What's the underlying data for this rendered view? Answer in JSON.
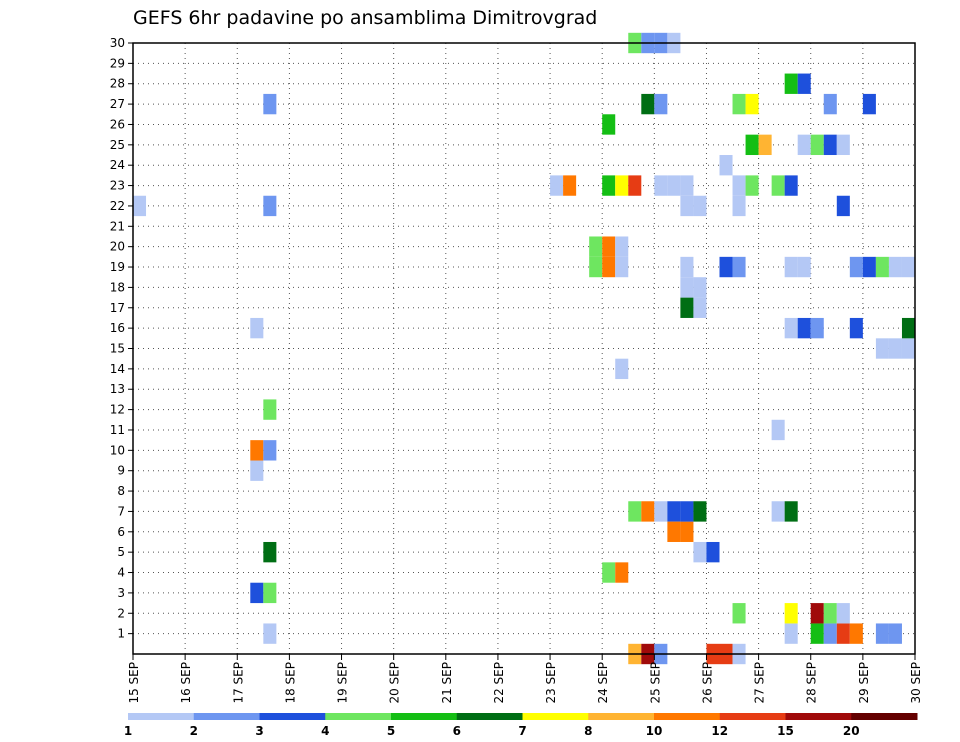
{
  "chart_data": {
    "type": "heatmap",
    "title": "GEFS 6hr padavine po ansamblima Dimitrovgrad",
    "xlabel": "",
    "ylabel": "",
    "x_ticks": [
      "15 SEP",
      "16 SEP",
      "17 SEP",
      "18 SEP",
      "19 SEP",
      "20 SEP",
      "21 SEP",
      "22 SEP",
      "23 SEP",
      "24 SEP",
      "25 SEP",
      "26 SEP",
      "27 SEP",
      "28 SEP",
      "29 SEP",
      "30 SEP"
    ],
    "y_ticks": [
      1,
      2,
      3,
      4,
      5,
      6,
      7,
      8,
      9,
      10,
      11,
      12,
      13,
      14,
      15,
      16,
      17,
      18,
      19,
      20,
      21,
      22,
      23,
      24,
      25,
      26,
      27,
      28,
      29,
      30
    ],
    "xlim": [
      0,
      60
    ],
    "ylim": [
      0,
      30
    ],
    "grid": true,
    "colorbar": {
      "labels": [
        "1",
        "2",
        "3",
        "4",
        "5",
        "6",
        "7",
        "8",
        "10",
        "12",
        "15",
        "20"
      ],
      "colors": [
        "#b4c8f5",
        "#6e96f0",
        "#1e50dc",
        "#6ee660",
        "#14be14",
        "#006e14",
        "#ffff00",
        "#ffb432",
        "#ff7800",
        "#e63c14",
        "#a00a0a",
        "#640000"
      ]
    },
    "cells": [
      {
        "t": 0.5,
        "m": 22,
        "c": 0
      },
      {
        "t": 9.5,
        "m": 3,
        "c": 2
      },
      {
        "t": 9.5,
        "m": 9,
        "c": 0
      },
      {
        "t": 9.5,
        "m": 10,
        "c": 8
      },
      {
        "t": 9.5,
        "m": 16,
        "c": 0
      },
      {
        "t": 10.5,
        "m": 1,
        "c": 0
      },
      {
        "t": 10.5,
        "m": 3,
        "c": 3
      },
      {
        "t": 10.5,
        "m": 5,
        "c": 5
      },
      {
        "t": 10.5,
        "m": 10,
        "c": 1
      },
      {
        "t": 10.5,
        "m": 12,
        "c": 3
      },
      {
        "t": 10.5,
        "m": 22,
        "c": 1
      },
      {
        "t": 10.5,
        "m": 27,
        "c": 1
      },
      {
        "t": 32.5,
        "m": 23,
        "c": 0
      },
      {
        "t": 33.5,
        "m": 23,
        "c": 8
      },
      {
        "t": 35.5,
        "m": 19,
        "c": 3
      },
      {
        "t": 35.5,
        "m": 20,
        "c": 3
      },
      {
        "t": 36.5,
        "m": 4,
        "c": 3
      },
      {
        "t": 36.5,
        "m": 19,
        "c": 8
      },
      {
        "t": 36.5,
        "m": 20,
        "c": 8
      },
      {
        "t": 36.5,
        "m": 23,
        "c": 4
      },
      {
        "t": 36.5,
        "m": 26,
        "c": 4
      },
      {
        "t": 37.5,
        "m": 4,
        "c": 8
      },
      {
        "t": 37.5,
        "m": 19,
        "c": 0
      },
      {
        "t": 37.5,
        "m": 20,
        "c": 0
      },
      {
        "t": 37.5,
        "m": 14,
        "c": 0
      },
      {
        "t": 37.5,
        "m": 23,
        "c": 6
      },
      {
        "t": 38.5,
        "m": 0,
        "c": 7
      },
      {
        "t": 38.5,
        "m": 7,
        "c": 3
      },
      {
        "t": 38.5,
        "m": 23,
        "c": 9
      },
      {
        "t": 38.5,
        "m": 30,
        "c": 3
      },
      {
        "t": 39.5,
        "m": 0,
        "c": 10
      },
      {
        "t": 39.5,
        "m": 7,
        "c": 8
      },
      {
        "t": 39.5,
        "m": 27,
        "c": 5
      },
      {
        "t": 39.5,
        "m": 30,
        "c": 1
      },
      {
        "t": 40.5,
        "m": 0,
        "c": 1
      },
      {
        "t": 40.5,
        "m": 7,
        "c": 0
      },
      {
        "t": 40.5,
        "m": 23,
        "c": 0
      },
      {
        "t": 40.5,
        "m": 27,
        "c": 1
      },
      {
        "t": 40.5,
        "m": 30,
        "c": 1
      },
      {
        "t": 41.5,
        "m": 7,
        "c": 2
      },
      {
        "t": 41.5,
        "m": 6,
        "c": 8
      },
      {
        "t": 41.5,
        "m": 23,
        "c": 0
      },
      {
        "t": 41.5,
        "m": 30,
        "c": 0
      },
      {
        "t": 42.5,
        "m": 6,
        "c": 8
      },
      {
        "t": 42.5,
        "m": 7,
        "c": 2
      },
      {
        "t": 42.5,
        "m": 17,
        "c": 5
      },
      {
        "t": 42.5,
        "m": 18,
        "c": 0
      },
      {
        "t": 42.5,
        "m": 19,
        "c": 0
      },
      {
        "t": 42.5,
        "m": 22,
        "c": 0
      },
      {
        "t": 42.5,
        "m": 23,
        "c": 0
      },
      {
        "t": 43.5,
        "m": 5,
        "c": 0
      },
      {
        "t": 43.5,
        "m": 7,
        "c": 5
      },
      {
        "t": 43.5,
        "m": 18,
        "c": 0
      },
      {
        "t": 43.5,
        "m": 17,
        "c": 0
      },
      {
        "t": 43.5,
        "m": 22,
        "c": 0
      },
      {
        "t": 44.5,
        "m": 0,
        "c": 9
      },
      {
        "t": 44.5,
        "m": 5,
        "c": 2
      },
      {
        "t": 45.5,
        "m": 0,
        "c": 9
      },
      {
        "t": 45.5,
        "m": 19,
        "c": 2
      },
      {
        "t": 45.5,
        "m": 24,
        "c": 0
      },
      {
        "t": 46.5,
        "m": 0,
        "c": 0
      },
      {
        "t": 46.5,
        "m": 2,
        "c": 3
      },
      {
        "t": 46.5,
        "m": 19,
        "c": 1
      },
      {
        "t": 46.5,
        "m": 22,
        "c": 0
      },
      {
        "t": 46.5,
        "m": 23,
        "c": 0
      },
      {
        "t": 46.5,
        "m": 27,
        "c": 3
      },
      {
        "t": 47.5,
        "m": 23,
        "c": 3
      },
      {
        "t": 47.5,
        "m": 25,
        "c": 4
      },
      {
        "t": 47.5,
        "m": 27,
        "c": 6
      },
      {
        "t": 48.5,
        "m": 25,
        "c": 7
      },
      {
        "t": 49.5,
        "m": 7,
        "c": 0
      },
      {
        "t": 49.5,
        "m": 11,
        "c": 0
      },
      {
        "t": 49.5,
        "m": 23,
        "c": 3
      },
      {
        "t": 50.5,
        "m": 1,
        "c": 0
      },
      {
        "t": 50.5,
        "m": 2,
        "c": 6
      },
      {
        "t": 50.5,
        "m": 7,
        "c": 5
      },
      {
        "t": 50.5,
        "m": 16,
        "c": 0
      },
      {
        "t": 50.5,
        "m": 19,
        "c": 0
      },
      {
        "t": 50.5,
        "m": 23,
        "c": 2
      },
      {
        "t": 50.5,
        "m": 28,
        "c": 4
      },
      {
        "t": 51.5,
        "m": 16,
        "c": 2
      },
      {
        "t": 51.5,
        "m": 19,
        "c": 0
      },
      {
        "t": 51.5,
        "m": 25,
        "c": 0
      },
      {
        "t": 51.5,
        "m": 28,
        "c": 2
      },
      {
        "t": 52.5,
        "m": 1,
        "c": 4
      },
      {
        "t": 52.5,
        "m": 2,
        "c": 10
      },
      {
        "t": 52.5,
        "m": 16,
        "c": 1
      },
      {
        "t": 52.5,
        "m": 25,
        "c": 3
      },
      {
        "t": 53.5,
        "m": 1,
        "c": 1
      },
      {
        "t": 53.5,
        "m": 2,
        "c": 3
      },
      {
        "t": 53.5,
        "m": 25,
        "c": 2
      },
      {
        "t": 53.5,
        "m": 27,
        "c": 1
      },
      {
        "t": 54.5,
        "m": 1,
        "c": 9
      },
      {
        "t": 54.5,
        "m": 2,
        "c": 0
      },
      {
        "t": 54.5,
        "m": 22,
        "c": 2
      },
      {
        "t": 54.5,
        "m": 25,
        "c": 0
      },
      {
        "t": 55.5,
        "m": 1,
        "c": 8
      },
      {
        "t": 55.5,
        "m": 16,
        "c": 2
      },
      {
        "t": 55.5,
        "m": 19,
        "c": 1
      },
      {
        "t": 56.5,
        "m": 19,
        "c": 2
      },
      {
        "t": 56.5,
        "m": 27,
        "c": 2
      },
      {
        "t": 57.5,
        "m": 1,
        "c": 1
      },
      {
        "t": 57.5,
        "m": 15,
        "c": 0
      },
      {
        "t": 57.5,
        "m": 19,
        "c": 3
      },
      {
        "t": 58.5,
        "m": 15,
        "c": 0
      },
      {
        "t": 58.5,
        "m": 19,
        "c": 0
      },
      {
        "t": 58.5,
        "m": 1,
        "c": 1
      },
      {
        "t": 59.5,
        "m": 15,
        "c": 0
      },
      {
        "t": 59.5,
        "m": 16,
        "c": 5
      },
      {
        "t": 59.5,
        "m": 19,
        "c": 0
      }
    ]
  }
}
